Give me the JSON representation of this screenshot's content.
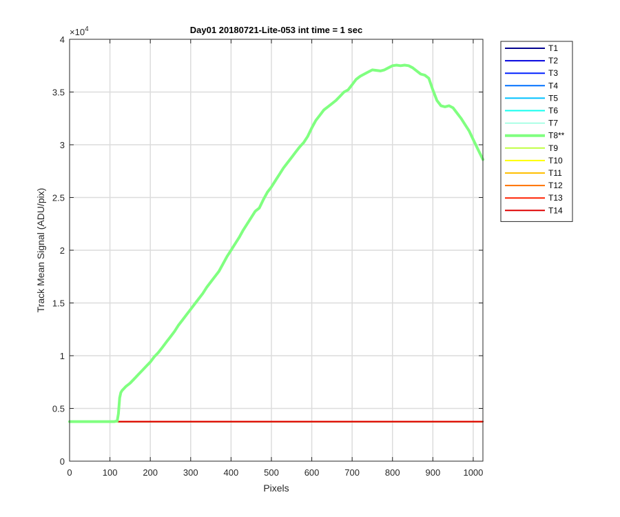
{
  "chart_data": {
    "type": "line",
    "title": "Day01 20180721-Lite-053 int time = 1 sec",
    "xlabel": "Pixels",
    "ylabel": "Track Mean Signal (ADU/pix)",
    "exponent_label": "×10",
    "exponent_power": "4",
    "xlim": [
      0,
      1024
    ],
    "ylim": [
      0,
      40000
    ],
    "xticks": [
      0,
      100,
      200,
      300,
      400,
      500,
      600,
      700,
      800,
      900,
      1000
    ],
    "yticks": [
      0,
      5000,
      10000,
      15000,
      20000,
      25000,
      30000,
      35000,
      40000
    ],
    "ytick_labels": [
      "0",
      "0.5",
      "1",
      "1.5",
      "2",
      "2.5",
      "3",
      "3.5",
      "4"
    ],
    "grid": true,
    "legend_position": "outside-right",
    "series": [
      {
        "name": "T1",
        "color": "#00008F",
        "width": 2,
        "x": [
          0,
          1024
        ],
        "y": [
          3750,
          3750
        ]
      },
      {
        "name": "T2",
        "color": "#0000DF",
        "width": 2,
        "x": [
          0,
          1024
        ],
        "y": [
          3750,
          3750
        ]
      },
      {
        "name": "T3",
        "color": "#0020FF",
        "width": 2,
        "x": [
          0,
          1024
        ],
        "y": [
          3750,
          3750
        ]
      },
      {
        "name": "T4",
        "color": "#0070FF",
        "width": 2,
        "x": [
          0,
          1024
        ],
        "y": [
          3750,
          3750
        ]
      },
      {
        "name": "T5",
        "color": "#00C0FF",
        "width": 2,
        "x": [
          0,
          1024
        ],
        "y": [
          3750,
          3750
        ]
      },
      {
        "name": "T6",
        "color": "#10FFEF",
        "width": 2,
        "x": [
          0,
          1024
        ],
        "y": [
          3750,
          3750
        ]
      },
      {
        "name": "T7",
        "color": "#60FFCF",
        "width": 1,
        "x": [
          0,
          1024
        ],
        "y": [
          3750,
          3750
        ]
      },
      {
        "name": "T9",
        "color": "#BFFF40",
        "width": 2,
        "x": [
          0,
          1024
        ],
        "y": [
          3750,
          3750
        ]
      },
      {
        "name": "T10",
        "color": "#FFFF00",
        "width": 2,
        "x": [
          0,
          1024
        ],
        "y": [
          3750,
          3750
        ]
      },
      {
        "name": "T11",
        "color": "#FFBF00",
        "width": 2,
        "x": [
          0,
          1024
        ],
        "y": [
          3750,
          3750
        ]
      },
      {
        "name": "T12",
        "color": "#FF7000",
        "width": 2,
        "x": [
          0,
          1024
        ],
        "y": [
          3750,
          3750
        ]
      },
      {
        "name": "T13",
        "color": "#FF2000",
        "width": 2,
        "x": [
          0,
          1024
        ],
        "y": [
          3750,
          3750
        ]
      },
      {
        "name": "T14",
        "color": "#DF0000",
        "width": 2,
        "x": [
          0,
          1024
        ],
        "y": [
          3750,
          3750
        ]
      },
      {
        "name": "T8**",
        "color": "#80FF80",
        "width": 4,
        "x": [
          0,
          110,
          118,
          121,
          124,
          127,
          130,
          140,
          150,
          160,
          170,
          180,
          190,
          200,
          210,
          220,
          230,
          240,
          250,
          260,
          270,
          280,
          290,
          300,
          310,
          320,
          330,
          340,
          350,
          360,
          370,
          380,
          390,
          400,
          410,
          420,
          430,
          440,
          450,
          460,
          470,
          480,
          490,
          500,
          510,
          520,
          530,
          540,
          550,
          560,
          570,
          580,
          590,
          600,
          610,
          620,
          630,
          640,
          650,
          660,
          670,
          680,
          690,
          700,
          710,
          720,
          730,
          740,
          750,
          760,
          770,
          780,
          790,
          800,
          810,
          820,
          830,
          840,
          850,
          860,
          870,
          880,
          890,
          900,
          910,
          920,
          930,
          940,
          950,
          960,
          970,
          980,
          990,
          1000,
          1010,
          1024
        ],
        "y": [
          3750,
          3750,
          3800,
          4500,
          6000,
          6500,
          6700,
          7100,
          7400,
          7800,
          8200,
          8600,
          9000,
          9400,
          9900,
          10300,
          10800,
          11300,
          11800,
          12300,
          12900,
          13400,
          13900,
          14400,
          14900,
          15400,
          15900,
          16500,
          17000,
          17500,
          18000,
          18700,
          19400,
          20000,
          20600,
          21200,
          21900,
          22500,
          23100,
          23700,
          24000,
          24800,
          25500,
          26000,
          26600,
          27200,
          27800,
          28300,
          28800,
          29300,
          29800,
          30200,
          30800,
          31600,
          32300,
          32800,
          33300,
          33600,
          33900,
          34200,
          34600,
          35000,
          35200,
          35700,
          36200,
          36500,
          36700,
          36900,
          37100,
          37050,
          37000,
          37100,
          37300,
          37500,
          37550,
          37500,
          37550,
          37500,
          37300,
          37000,
          36700,
          36600,
          36300,
          35200,
          34200,
          33700,
          33600,
          33700,
          33500,
          33000,
          32500,
          31900,
          31300,
          30500,
          29700,
          28600
        ]
      }
    ],
    "legend": [
      {
        "label": "T1",
        "color": "#00008F",
        "width": 2
      },
      {
        "label": "T2",
        "color": "#0000DF",
        "width": 2
      },
      {
        "label": "T3",
        "color": "#0020FF",
        "width": 2
      },
      {
        "label": "T4",
        "color": "#0070FF",
        "width": 2
      },
      {
        "label": "T5",
        "color": "#00C0FF",
        "width": 2
      },
      {
        "label": "T6",
        "color": "#10FFEF",
        "width": 2
      },
      {
        "label": "T7",
        "color": "#60FFCF",
        "width": 1
      },
      {
        "label": "T8**",
        "color": "#80FF80",
        "width": 4
      },
      {
        "label": "T9",
        "color": "#BFFF40",
        "width": 2
      },
      {
        "label": "T10",
        "color": "#FFFF00",
        "width": 2
      },
      {
        "label": "T11",
        "color": "#FFBF00",
        "width": 2
      },
      {
        "label": "T12",
        "color": "#FF7000",
        "width": 2
      },
      {
        "label": "T13",
        "color": "#FF2000",
        "width": 2
      },
      {
        "label": "T14",
        "color": "#DF0000",
        "width": 2
      }
    ]
  }
}
